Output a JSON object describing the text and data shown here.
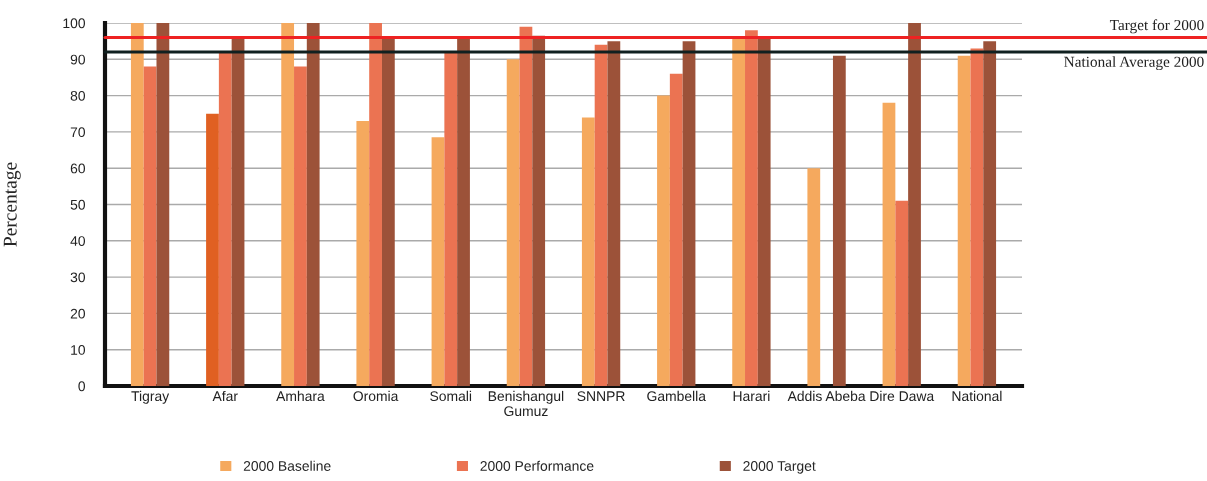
{
  "chart_data": {
    "type": "bar",
    "ylabel": "Percentage",
    "categories": [
      "Tigray",
      "Afar",
      "Amhara",
      "Oromia",
      "Somali",
      "Benishangul\nGumuz",
      "SNNPR",
      "Gambella",
      "Harari",
      "Addis Abeba",
      "Dire Dawa",
      "National"
    ],
    "series": [
      {
        "name": "2000 Baseline",
        "color": "#f5a95e",
        "colors": [
          "#f5a95e",
          "#e06022",
          "#f5a95e",
          "#f5a95e",
          "#f5a95e",
          "#f5a95e",
          "#f5a95e",
          "#f5a95e",
          "#f5a95e",
          "#f5a95e",
          "#f5a95e",
          "#f5a95e"
        ],
        "values": [
          100,
          75,
          100,
          73,
          68.5,
          90,
          74,
          80,
          96,
          60,
          78,
          91
        ]
      },
      {
        "name": "2000 Performance",
        "color": "#eb7352",
        "values": [
          88,
          92,
          88,
          100,
          92,
          99,
          94,
          86,
          98,
          null,
          51,
          93
        ]
      },
      {
        "name": "2000 Target",
        "color": "#9c5239",
        "values": [
          100,
          96,
          100,
          96,
          96,
          96.5,
          95,
          95,
          96,
          91,
          100,
          95
        ]
      }
    ],
    "ylim": [
      0,
      100
    ],
    "yticks": [
      0,
      10,
      20,
      30,
      40,
      50,
      60,
      70,
      80,
      90,
      100
    ],
    "ref_lines": [
      {
        "axis": "y",
        "value": 96,
        "label": "Target for 2000",
        "color": "#ee2222"
      },
      {
        "axis": "y",
        "value": 92,
        "label": "National Average 2000",
        "color": "#102020"
      }
    ],
    "grid": "y",
    "legend": "bottom"
  }
}
